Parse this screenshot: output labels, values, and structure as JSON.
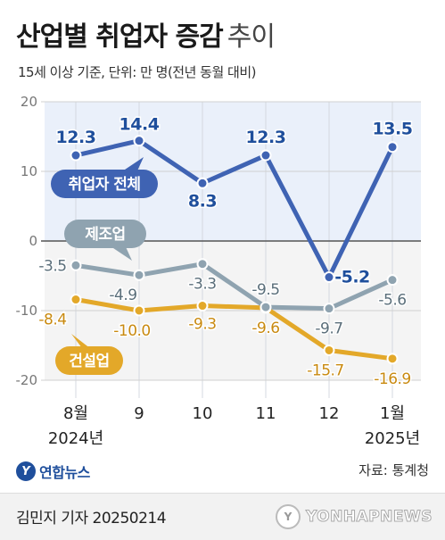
{
  "title": "산업별 취업자 증감",
  "title_suffix": "추이",
  "subtitle": "15세 이상 기준, 단위: 만 명(전년 동월 대비)",
  "source": "자료: 통계청",
  "logo": "연합뉴스",
  "byline": "김민지 기자  20250214",
  "watermark": "YONHAPNEWS",
  "colors": {
    "total": "#3f63b3",
    "manufacturing": "#8fa3b0",
    "construction": "#e3a829",
    "label_total": "#1f4f9c",
    "label_manufacturing": "#5a6e7a",
    "label_construction": "#c98a10"
  },
  "chart_data": {
    "type": "line",
    "categories": [
      "8월",
      "9",
      "10",
      "11",
      "12",
      "1월"
    ],
    "year_labels": [
      "2024년",
      "",
      "",
      "",
      "",
      "2025년"
    ],
    "ylim": [
      -20,
      20
    ],
    "yticks": [
      20,
      10,
      0,
      -10,
      -20
    ],
    "xlabel": "",
    "ylabel": "",
    "series": [
      {
        "name": "취업자 전체",
        "key": "total",
        "values": [
          12.3,
          14.4,
          8.3,
          12.3,
          -5.2,
          13.5
        ],
        "labels": [
          "12.3",
          "14.4",
          "8.3",
          "12.3",
          "-5.2",
          "13.5"
        ]
      },
      {
        "name": "제조업",
        "key": "manufacturing",
        "values": [
          -3.5,
          -4.9,
          -3.3,
          -9.5,
          -9.7,
          -5.6
        ],
        "labels": [
          "-3.5",
          "-4.9",
          "-3.3",
          "-9.5",
          "-9.7",
          "-5.6"
        ]
      },
      {
        "name": "건설업",
        "key": "construction",
        "values": [
          -8.4,
          -10.0,
          -9.3,
          -9.6,
          -15.7,
          -16.9
        ],
        "labels": [
          "-8.4",
          "-10.0",
          "-9.3",
          "-9.6",
          "-15.7",
          "-16.9"
        ]
      }
    ]
  }
}
